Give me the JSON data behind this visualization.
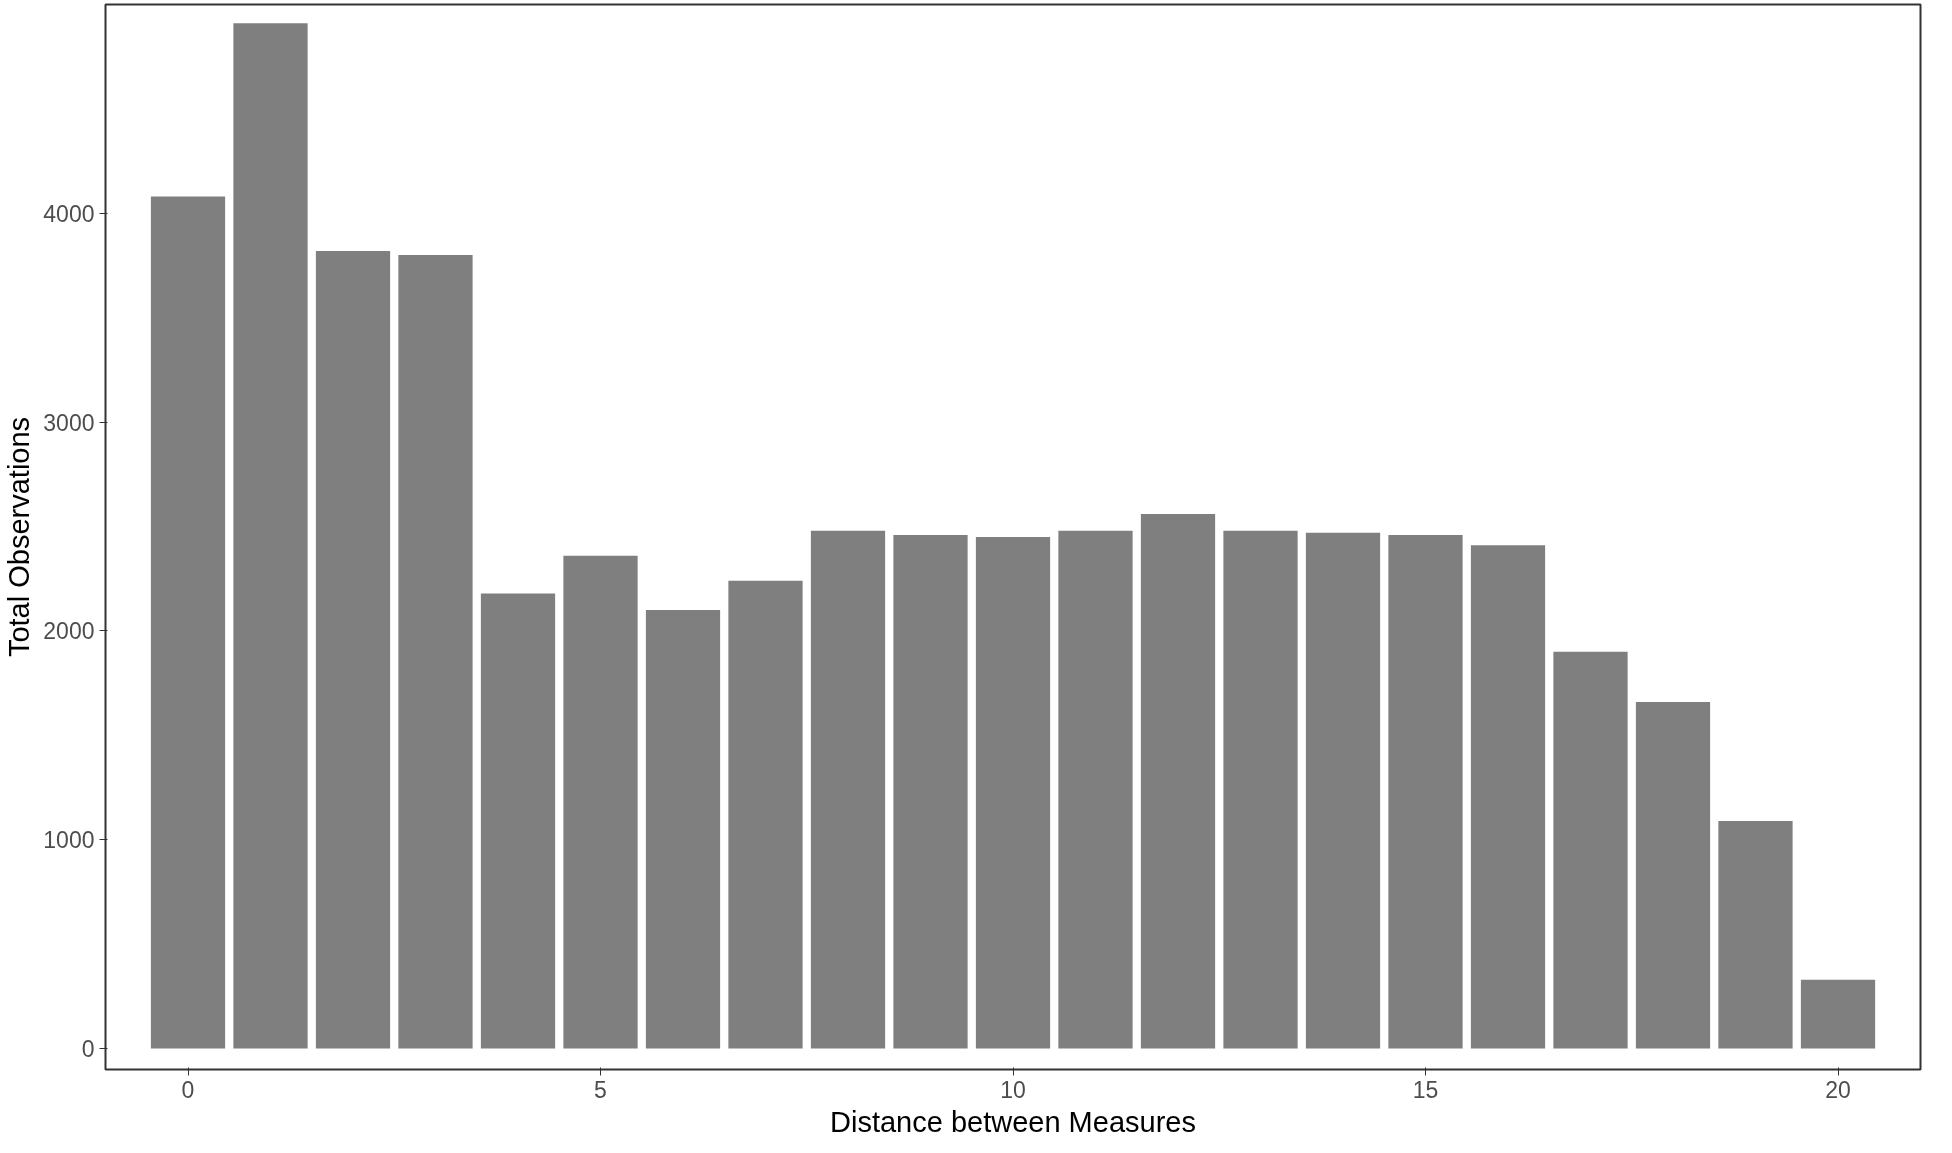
{
  "chart_data": {
    "type": "bar",
    "xlabel": "Distance between Measures",
    "ylabel": "Total Observations",
    "x": [
      0,
      1,
      2,
      3,
      4,
      5,
      6,
      7,
      8,
      9,
      10,
      11,
      12,
      13,
      14,
      15,
      16,
      17,
      18,
      19,
      20
    ],
    "values": [
      4080,
      4910,
      3820,
      3800,
      2180,
      2360,
      2100,
      2240,
      2480,
      2460,
      2450,
      2480,
      2560,
      2480,
      2470,
      2460,
      2410,
      1900,
      1660,
      1090,
      330
    ],
    "color": "#7f7f7f",
    "xlim": [
      -1,
      21
    ],
    "xticks": [
      0,
      5,
      10,
      15,
      20
    ],
    "ylim": [
      -100,
      5000
    ],
    "yticks": [
      0,
      1000,
      2000,
      3000,
      4000
    ],
    "grid": false
  }
}
